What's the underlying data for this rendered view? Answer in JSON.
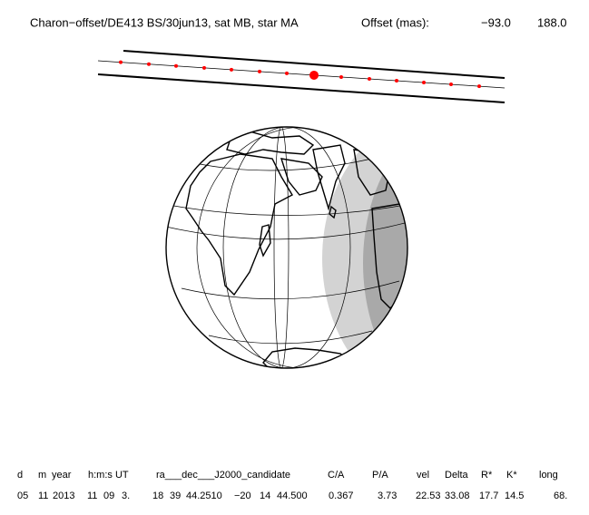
{
  "header": {
    "title": "Charon−offset/DE413 BS/30jun13, sat MB, star MA",
    "offset_label": "Offset (mas):",
    "offset_values": [
      "−93.0",
      "188.0"
    ]
  },
  "table": {
    "headers": [
      "d",
      "m",
      "year",
      "h:m:s UT",
      "ra___dec___J2000_candidate",
      "C/A",
      "P/A",
      "vel",
      "Delta",
      "R*",
      "K*",
      "long"
    ],
    "values": [
      "05",
      "11",
      "2013",
      "11",
      "09",
      "3.",
      "18",
      "39",
      "44.2510",
      "−20",
      "14",
      "44.500",
      "0.367",
      "3.73",
      "22.53",
      "33.08",
      "17.7",
      "14.5",
      "68."
    ]
  }
}
